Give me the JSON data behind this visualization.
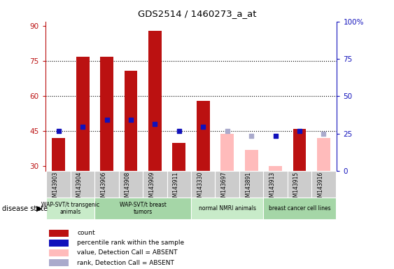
{
  "title": "GDS2514 / 1460273_a_at",
  "samples": [
    "GSM143903",
    "GSM143904",
    "GSM143906",
    "GSM143908",
    "GSM143909",
    "GSM143911",
    "GSM143330",
    "GSM143697",
    "GSM143891",
    "GSM143913",
    "GSM143915",
    "GSM143916"
  ],
  "red_values": [
    42,
    77,
    77,
    71,
    88,
    40,
    58,
    null,
    null,
    null,
    46,
    null
  ],
  "pink_values": [
    null,
    null,
    null,
    null,
    null,
    null,
    null,
    44,
    37,
    30,
    null,
    42
  ],
  "blue_dots": [
    45,
    47,
    50,
    50,
    48,
    45,
    47,
    null,
    null,
    43,
    45,
    null
  ],
  "lblue_dots": [
    null,
    null,
    null,
    null,
    null,
    null,
    null,
    45,
    43,
    null,
    null,
    44
  ],
  "ylim_left": [
    28,
    92
  ],
  "ylim_right": [
    0,
    100
  ],
  "yticks_left": [
    30,
    45,
    60,
    75,
    90
  ],
  "yticks_right": [
    0,
    25,
    50,
    75,
    100
  ],
  "yticks_right_labels": [
    "0",
    "25",
    "50",
    "75",
    "100%"
  ],
  "dotted_lines": [
    45,
    60,
    75
  ],
  "groups": [
    {
      "label": "WAP-SVT/t transgenic\nanimals",
      "start": 0,
      "end": 1,
      "color": "#c8ebc9"
    },
    {
      "label": "WAP-SVT/t breast\ntumors",
      "start": 2,
      "end": 5,
      "color": "#a5d6a7"
    },
    {
      "label": "normal NMRI animals",
      "start": 6,
      "end": 9,
      "color": "#c8ebc9"
    },
    {
      "label": "breast cancer cell lines",
      "start": 9,
      "end": 11,
      "color": "#a5d6a7"
    }
  ],
  "bar_width": 0.55,
  "red_color": "#bb1111",
  "pink_color": "#ffbbbb",
  "blue_color": "#1111bb",
  "lblue_color": "#aaaacc",
  "disease_state_label": "disease state",
  "legend_items": [
    {
      "label": "count",
      "color": "#bb1111"
    },
    {
      "label": "percentile rank within the sample",
      "color": "#1111bb"
    },
    {
      "label": "value, Detection Call = ABSENT",
      "color": "#ffbbbb"
    },
    {
      "label": "rank, Detection Call = ABSENT",
      "color": "#aaaacc"
    }
  ]
}
